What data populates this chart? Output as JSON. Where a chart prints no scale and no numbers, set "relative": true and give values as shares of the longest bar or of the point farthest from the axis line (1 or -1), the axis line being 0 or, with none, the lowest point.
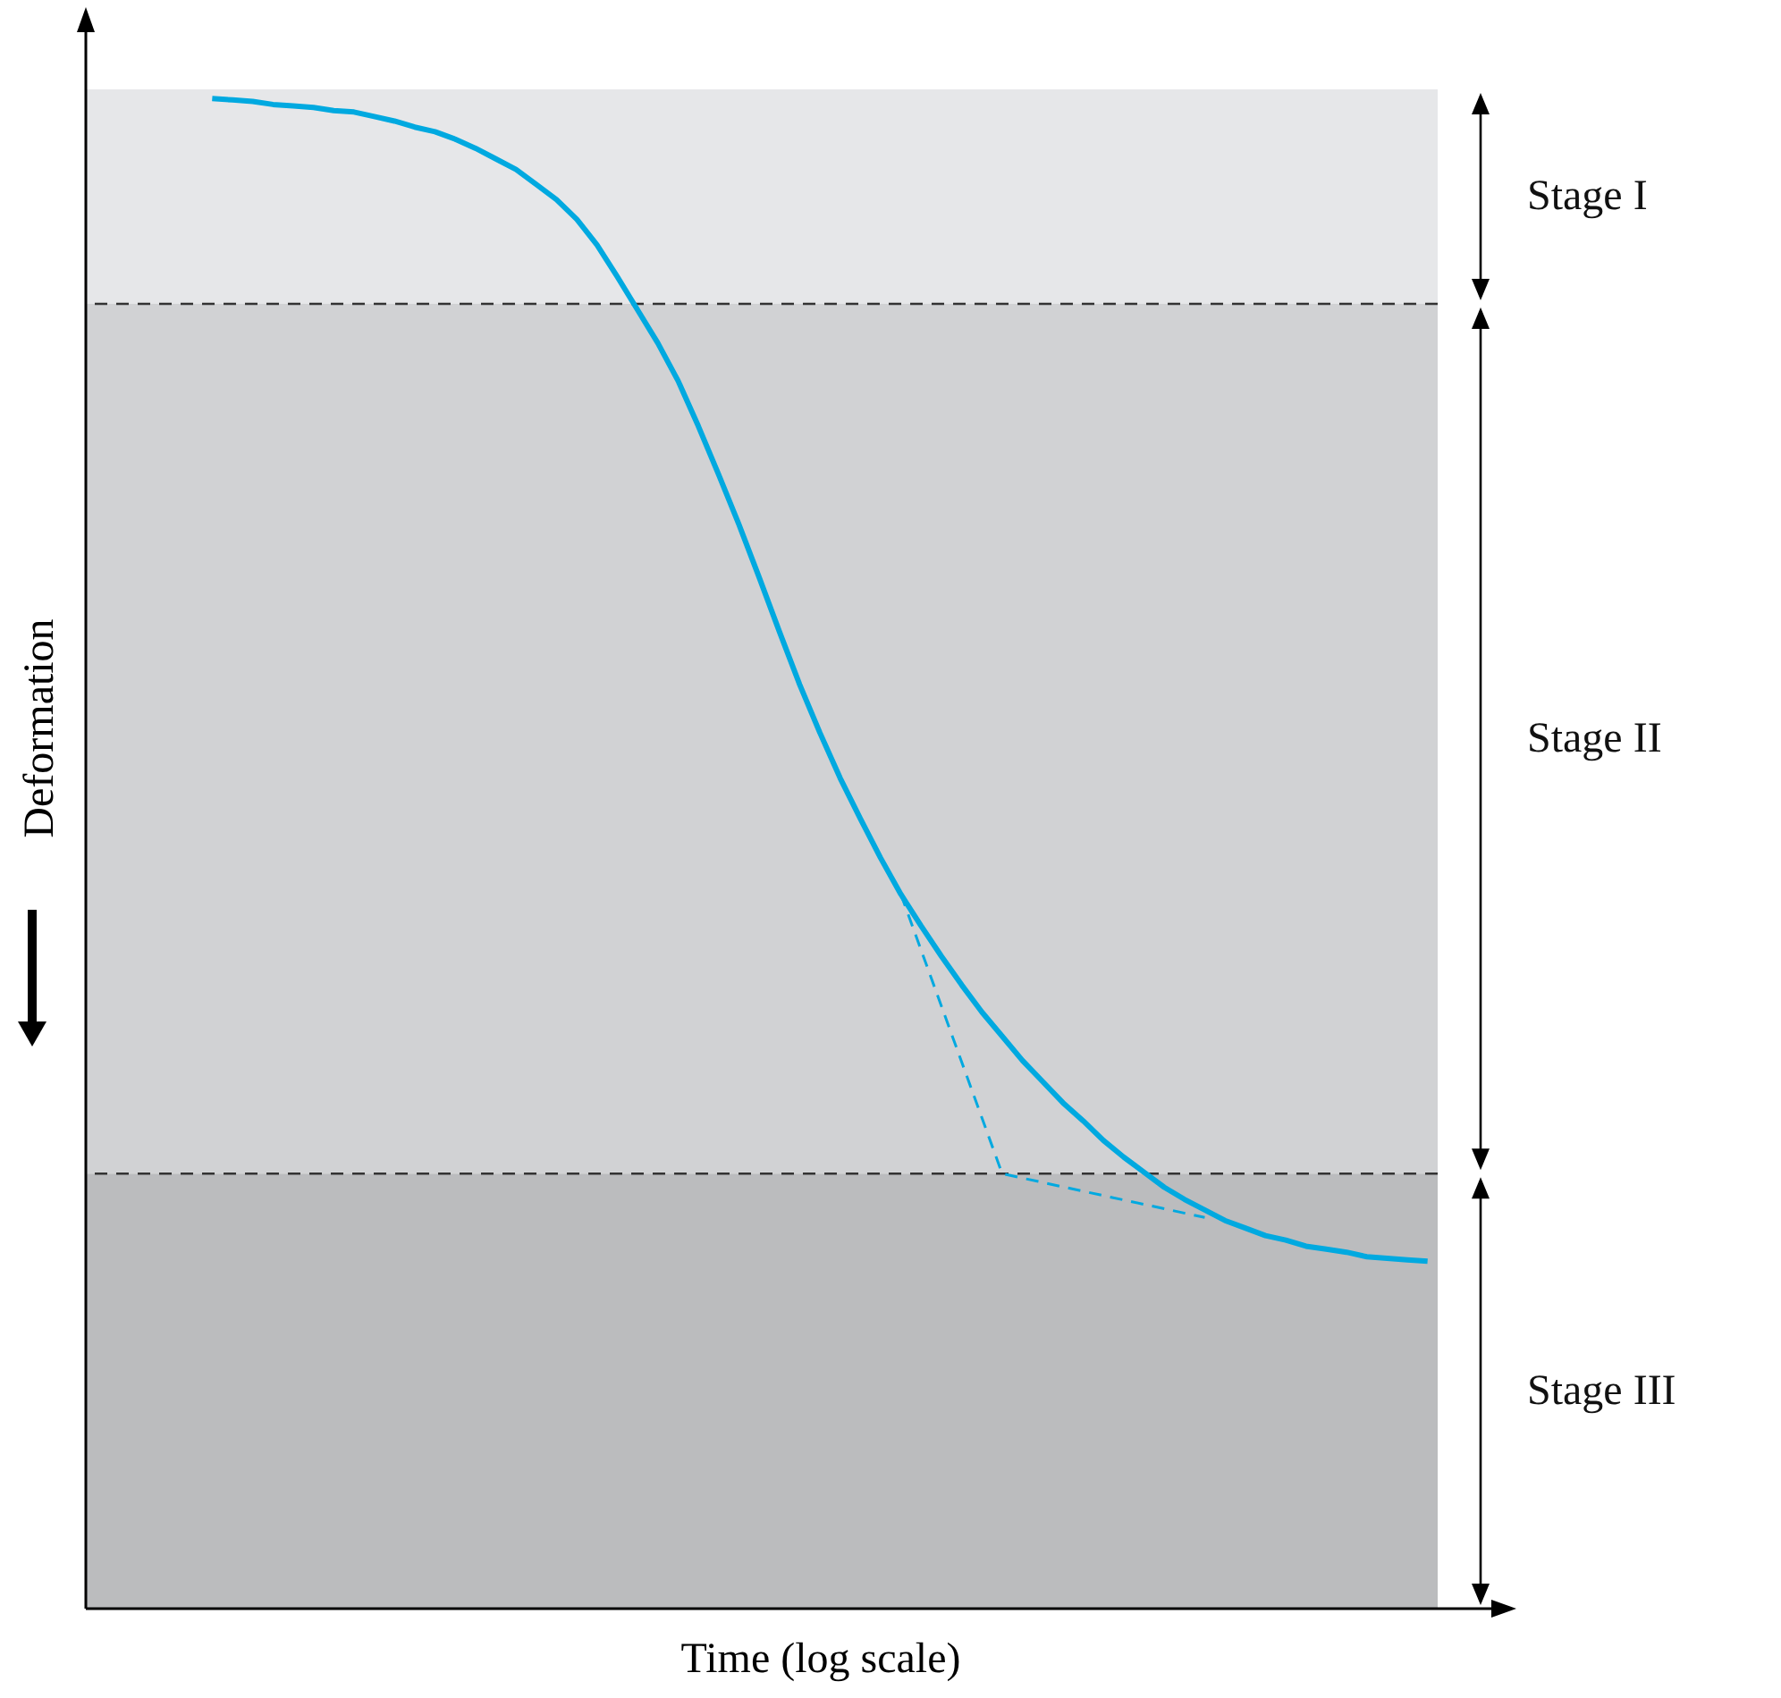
{
  "chart_data": {
    "type": "line",
    "xlabel": "Time (log scale)",
    "ylabel": "Deformation",
    "relative": true,
    "marker": "none",
    "categories": [
      null,
      null,
      null,
      null,
      null,
      null,
      null,
      null,
      null,
      null,
      null,
      null,
      null,
      null,
      null,
      null,
      null,
      null,
      null,
      null,
      null,
      null,
      null,
      null,
      null,
      null,
      null,
      null,
      null,
      null,
      null,
      null,
      null,
      null,
      null,
      null,
      null,
      null,
      null,
      null,
      null,
      null,
      null,
      null,
      null,
      null,
      null,
      null,
      null,
      null,
      null,
      null,
      null,
      null,
      null,
      null,
      null,
      null,
      null,
      null,
      null
    ],
    "series": [
      {
        "color": "#00a9e0",
        "line_style": "solid",
        "values": [
          1.0,
          0.999,
          0.998,
          0.996,
          0.995,
          0.994,
          0.992,
          0.991,
          0.988,
          0.985,
          0.981,
          0.978,
          0.973,
          0.967,
          0.96,
          0.953,
          0.943,
          0.933,
          0.92,
          0.903,
          0.882,
          0.86,
          0.838,
          0.813,
          0.783,
          0.751,
          0.718,
          0.683,
          0.647,
          0.612,
          0.58,
          0.55,
          0.523,
          0.497,
          0.473,
          0.452,
          0.432,
          0.413,
          0.395,
          0.379,
          0.363,
          0.349,
          0.335,
          0.323,
          0.31,
          0.299,
          0.289,
          0.279,
          0.271,
          0.264,
          0.257,
          0.252,
          0.247,
          0.244,
          0.24,
          0.238,
          0.236,
          0.233,
          0.232,
          0.231,
          0.23
        ]
      },
      {
        "color": "#00a9e0",
        "line_style": "dashed",
        "values": [
          null,
          null,
          null,
          null,
          null,
          null,
          null,
          null,
          null,
          null,
          null,
          null,
          null,
          null,
          null,
          null,
          null,
          null,
          null,
          null,
          null,
          null,
          null,
          null,
          null,
          null,
          null,
          null,
          null,
          null,
          null,
          null,
          null,
          null,
          0.473,
          null,
          null,
          null,
          null,
          0.288,
          null,
          null,
          null,
          null,
          null,
          null,
          null,
          null,
          null,
          0.259,
          null,
          null,
          null,
          null,
          null,
          null,
          null,
          null,
          null,
          null,
          null
        ]
      }
    ],
    "bands": [
      {
        "axis": "y",
        "from": 0.864,
        "to": 1.006,
        "label": "Stage I",
        "color": "#e6e7e9"
      },
      {
        "axis": "y",
        "from": 0.288,
        "to": 0.864,
        "label": "Stage II",
        "color": "#d1d2d4"
      },
      {
        "axis": "y",
        "from": 0,
        "to": 0.288,
        "label": "Stage III",
        "color": "#bbbcbe"
      }
    ],
    "ref_lines": [
      {
        "axis": "y",
        "value": 0.864,
        "color": "#333333",
        "line_style": "dashed"
      },
      {
        "axis": "y",
        "value": 0.288,
        "color": "#333333",
        "line_style": "dashed"
      }
    ]
  }
}
